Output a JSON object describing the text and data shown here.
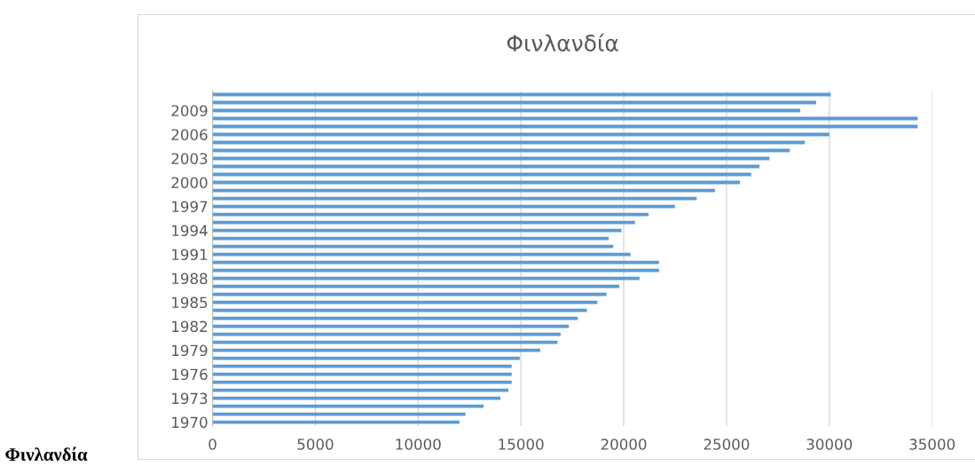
{
  "chart_data": {
    "type": "bar",
    "orientation": "horizontal",
    "title": "Φινλανδία",
    "categories": [
      null,
      null,
      "2009",
      null,
      null,
      "2006",
      null,
      null,
      "2003",
      null,
      null,
      "2000",
      null,
      null,
      "1997",
      null,
      null,
      "1994",
      null,
      null,
      "1991",
      null,
      null,
      "1988",
      null,
      null,
      "1985",
      null,
      null,
      "1982",
      null,
      null,
      "1979",
      null,
      null,
      "1976",
      null,
      null,
      "1973",
      null,
      null,
      "1970"
    ],
    "values": [
      30070,
      29360,
      28590,
      34300,
      34300,
      30000,
      28810,
      28080,
      27090,
      26600,
      26200,
      25650,
      24440,
      23550,
      22490,
      21210,
      20550,
      19890,
      19270,
      19490,
      20330,
      21720,
      21720,
      20770,
      19780,
      19160,
      18720,
      18210,
      17770,
      17330,
      16930,
      16780,
      15940,
      14940,
      14550,
      14550,
      14550,
      14390,
      14000,
      13180,
      12300,
      12010
    ],
    "color": "#5b9bd5",
    "xlim": [
      0,
      35000
    ],
    "xticks": [
      0,
      5000,
      10000,
      15000,
      20000,
      25000,
      30000,
      35000
    ],
    "grid": "x",
    "annotations": [
      "Φινλανδία"
    ]
  }
}
